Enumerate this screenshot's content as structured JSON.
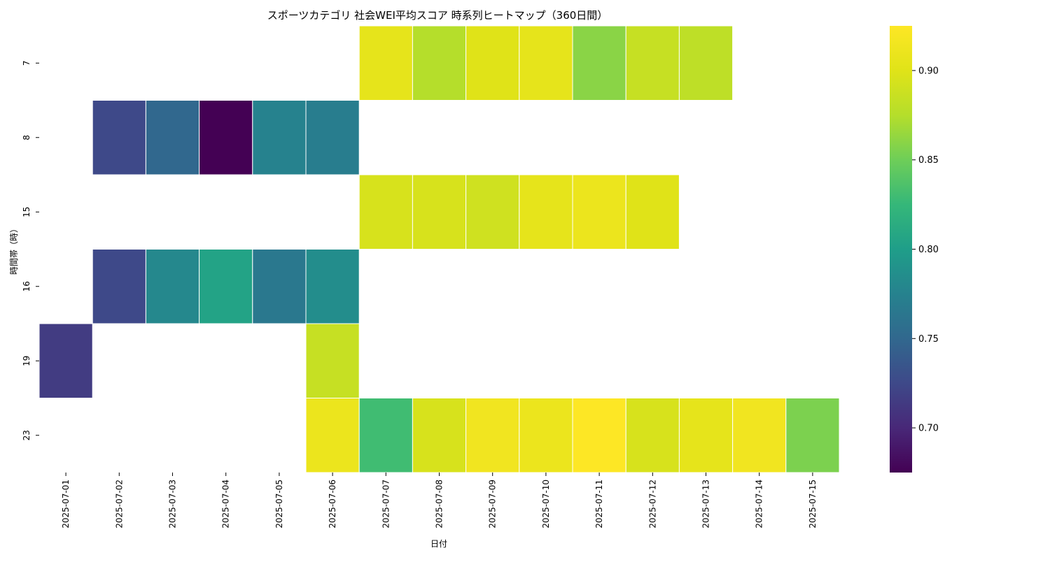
{
  "chart_data": {
    "type": "heatmap",
    "title": "スポーツカテゴリ 社会WEI平均スコア 時系列ヒートマップ（360日間）",
    "xlabel": "日付",
    "ylabel": "時間帯（時）",
    "x": [
      "2025-07-01",
      "2025-07-02",
      "2025-07-03",
      "2025-07-04",
      "2025-07-05",
      "2025-07-06",
      "2025-07-07",
      "2025-07-08",
      "2025-07-09",
      "2025-07-10",
      "2025-07-11",
      "2025-07-12",
      "2025-07-13",
      "2025-07-14",
      "2025-07-15"
    ],
    "y": [
      "7",
      "8",
      "15",
      "16",
      "19",
      "23"
    ],
    "values": [
      [
        null,
        null,
        null,
        null,
        null,
        null,
        0.905,
        0.875,
        0.9,
        0.905,
        0.86,
        0.885,
        0.88,
        null,
        null
      ],
      [
        null,
        0.725,
        0.75,
        0.675,
        0.775,
        0.77,
        null,
        null,
        null,
        null,
        null,
        null,
        null,
        null,
        null
      ],
      [
        null,
        null,
        null,
        null,
        null,
        null,
        0.895,
        0.895,
        0.89,
        0.905,
        0.91,
        0.9,
        null,
        null,
        null
      ],
      [
        null,
        0.725,
        0.78,
        0.805,
        0.765,
        0.785,
        null,
        null,
        null,
        null,
        null,
        null,
        null,
        null,
        null
      ],
      [
        0.715,
        null,
        null,
        null,
        null,
        0.885,
        null,
        null,
        null,
        null,
        null,
        null,
        null,
        null,
        null
      ],
      [
        null,
        null,
        null,
        null,
        null,
        0.91,
        0.83,
        0.895,
        0.915,
        0.91,
        0.925,
        0.895,
        0.905,
        0.915,
        0.855
      ]
    ],
    "colormap": "viridis",
    "vmin": 0.675,
    "vmax": 0.925,
    "colorbar_ticks": [
      "0.70",
      "0.75",
      "0.80",
      "0.85",
      "0.90"
    ],
    "colorbar_tick_values": [
      0.7,
      0.75,
      0.8,
      0.85,
      0.9
    ],
    "grid": false,
    "legend": "colorbar-right"
  }
}
